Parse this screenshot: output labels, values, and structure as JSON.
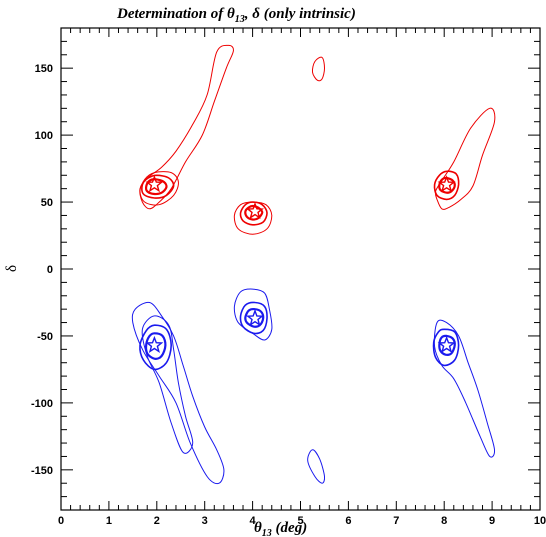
{
  "chart_data": {
    "type": "contour",
    "title_main": "Determination of θ",
    "title_sub": "13",
    "title_rest": ", δ (only intrinsic)",
    "xlabel_main": "θ",
    "xlabel_sub": "13",
    "xlabel_rest": " (deg)",
    "ylabel": "δ",
    "xlim": [
      0,
      10
    ],
    "ylim": [
      -180,
      180
    ],
    "xticks": [
      0,
      1,
      2,
      3,
      4,
      5,
      6,
      7,
      8,
      9,
      10
    ],
    "yticks": [
      -150,
      -100,
      -50,
      0,
      50,
      100,
      150
    ],
    "colors": {
      "red": "#ee0000",
      "blue": "#1a1aee"
    },
    "true_points": [
      {
        "color": "red",
        "x": 1.95,
        "y": 63
      },
      {
        "color": "red",
        "x": 4.05,
        "y": 43
      },
      {
        "color": "red",
        "x": 8.05,
        "y": 63
      },
      {
        "color": "blue",
        "x": 1.95,
        "y": -57
      },
      {
        "color": "blue",
        "x": 4.05,
        "y": -37
      },
      {
        "color": "blue",
        "x": 8.05,
        "y": -57
      }
    ],
    "contours": [
      {
        "color": "red",
        "level": "outer",
        "points": [
          [
            1.65,
            60
          ],
          [
            1.7,
            50
          ],
          [
            1.85,
            45
          ],
          [
            2.05,
            50
          ],
          [
            2.3,
            60
          ],
          [
            2.6,
            80
          ],
          [
            2.95,
            100
          ],
          [
            3.2,
            125
          ],
          [
            3.45,
            150
          ],
          [
            3.6,
            163
          ],
          [
            3.5,
            167
          ],
          [
            3.25,
            162
          ],
          [
            3.05,
            130
          ],
          [
            2.75,
            108
          ],
          [
            2.4,
            88
          ],
          [
            2.1,
            76
          ],
          [
            1.8,
            68
          ]
        ]
      },
      {
        "color": "red",
        "level": "outer",
        "points": [
          [
            1.95,
            72
          ],
          [
            2.3,
            72
          ],
          [
            2.45,
            65
          ],
          [
            2.35,
            55
          ],
          [
            2.05,
            48
          ],
          [
            1.75,
            50
          ],
          [
            1.65,
            58
          ],
          [
            1.75,
            67
          ]
        ]
      },
      {
        "color": "red",
        "level": "mid",
        "points": [
          [
            2.0,
            70
          ],
          [
            2.25,
            68
          ],
          [
            2.35,
            62
          ],
          [
            2.2,
            55
          ],
          [
            1.95,
            53
          ],
          [
            1.72,
            56
          ],
          [
            1.7,
            63
          ],
          [
            1.82,
            68
          ]
        ]
      },
      {
        "color": "red",
        "level": "inner",
        "points": [
          [
            1.98,
            67
          ],
          [
            2.15,
            65
          ],
          [
            2.2,
            61
          ],
          [
            2.1,
            57
          ],
          [
            1.95,
            56
          ],
          [
            1.8,
            58
          ],
          [
            1.78,
            62
          ],
          [
            1.85,
            66
          ]
        ]
      },
      {
        "color": "red",
        "level": "outer",
        "points": [
          [
            4.0,
            50
          ],
          [
            4.28,
            48
          ],
          [
            4.4,
            40
          ],
          [
            4.3,
            30
          ],
          [
            4.0,
            26
          ],
          [
            3.7,
            30
          ],
          [
            3.62,
            40
          ],
          [
            3.75,
            48
          ]
        ]
      },
      {
        "color": "red",
        "level": "mid",
        "points": [
          [
            4.0,
            50
          ],
          [
            4.2,
            48
          ],
          [
            4.3,
            42
          ],
          [
            4.22,
            35
          ],
          [
            4.0,
            33
          ],
          [
            3.8,
            36
          ],
          [
            3.75,
            42
          ],
          [
            3.85,
            48
          ]
        ]
      },
      {
        "color": "red",
        "level": "inner",
        "points": [
          [
            4.02,
            47
          ],
          [
            4.15,
            45
          ],
          [
            4.2,
            42
          ],
          [
            4.12,
            38
          ],
          [
            4.0,
            37
          ],
          [
            3.88,
            39
          ],
          [
            3.85,
            43
          ],
          [
            3.92,
            46
          ]
        ]
      },
      {
        "color": "red",
        "level": "outer",
        "points": [
          [
            5.3,
            155
          ],
          [
            5.45,
            158
          ],
          [
            5.5,
            150
          ],
          [
            5.45,
            142
          ],
          [
            5.35,
            141
          ],
          [
            5.25,
            147
          ]
        ]
      },
      {
        "color": "red",
        "level": "outer",
        "points": [
          [
            7.85,
            52
          ],
          [
            7.95,
            45
          ],
          [
            8.1,
            46
          ],
          [
            8.35,
            52
          ],
          [
            8.6,
            62
          ],
          [
            8.8,
            85
          ],
          [
            9.05,
            110
          ],
          [
            8.95,
            120
          ],
          [
            8.55,
            105
          ],
          [
            8.2,
            80
          ],
          [
            7.95,
            66
          ],
          [
            7.82,
            58
          ]
        ]
      },
      {
        "color": "red",
        "level": "mid",
        "points": [
          [
            8.05,
            73
          ],
          [
            8.25,
            71
          ],
          [
            8.3,
            63
          ],
          [
            8.22,
            55
          ],
          [
            8.05,
            52
          ],
          [
            7.85,
            55
          ],
          [
            7.8,
            63
          ],
          [
            7.9,
            70
          ]
        ]
      },
      {
        "color": "red",
        "level": "inner",
        "points": [
          [
            8.05,
            68
          ],
          [
            8.18,
            66
          ],
          [
            8.22,
            62
          ],
          [
            8.15,
            58
          ],
          [
            8.05,
            57
          ],
          [
            7.92,
            59
          ],
          [
            7.9,
            63
          ],
          [
            7.96,
            67
          ]
        ]
      },
      {
        "color": "blue",
        "level": "outer",
        "points": [
          [
            1.55,
            -30
          ],
          [
            1.85,
            -25
          ],
          [
            2.1,
            -35
          ],
          [
            2.35,
            -50
          ],
          [
            2.55,
            -72
          ],
          [
            2.75,
            -95
          ],
          [
            3.0,
            -118
          ],
          [
            3.25,
            -135
          ],
          [
            3.4,
            -150
          ],
          [
            3.3,
            -160
          ],
          [
            3.05,
            -155
          ],
          [
            2.7,
            -130
          ],
          [
            2.4,
            -100
          ],
          [
            2.05,
            -80
          ],
          [
            1.7,
            -60
          ],
          [
            1.5,
            -40
          ]
        ]
      },
      {
        "color": "blue",
        "level": "outer",
        "points": [
          [
            1.95,
            -35
          ],
          [
            2.25,
            -42
          ],
          [
            2.35,
            -60
          ],
          [
            2.45,
            -85
          ],
          [
            2.6,
            -110
          ],
          [
            2.75,
            -130
          ],
          [
            2.55,
            -137
          ],
          [
            2.3,
            -115
          ],
          [
            2.05,
            -85
          ],
          [
            1.8,
            -65
          ],
          [
            1.7,
            -45
          ]
        ]
      },
      {
        "color": "blue",
        "level": "mid",
        "points": [
          [
            1.95,
            -42
          ],
          [
            2.2,
            -45
          ],
          [
            2.3,
            -57
          ],
          [
            2.2,
            -70
          ],
          [
            1.95,
            -75
          ],
          [
            1.72,
            -68
          ],
          [
            1.65,
            -57
          ],
          [
            1.78,
            -46
          ]
        ]
      },
      {
        "color": "blue",
        "level": "inner",
        "points": [
          [
            1.95,
            -48
          ],
          [
            2.12,
            -50
          ],
          [
            2.18,
            -57
          ],
          [
            2.1,
            -65
          ],
          [
            1.95,
            -67
          ],
          [
            1.8,
            -63
          ],
          [
            1.78,
            -56
          ],
          [
            1.85,
            -50
          ]
        ]
      },
      {
        "color": "blue",
        "level": "outer",
        "points": [
          [
            4.0,
            -15
          ],
          [
            4.25,
            -18
          ],
          [
            4.35,
            -30
          ],
          [
            4.4,
            -45
          ],
          [
            4.25,
            -53
          ],
          [
            4.0,
            -48
          ],
          [
            3.7,
            -40
          ],
          [
            3.62,
            -28
          ],
          [
            3.75,
            -17
          ]
        ]
      },
      {
        "color": "blue",
        "level": "mid",
        "points": [
          [
            4.05,
            -25
          ],
          [
            4.25,
            -28
          ],
          [
            4.3,
            -37
          ],
          [
            4.22,
            -46
          ],
          [
            4.02,
            -48
          ],
          [
            3.8,
            -43
          ],
          [
            3.75,
            -35
          ],
          [
            3.85,
            -27
          ]
        ]
      },
      {
        "color": "blue",
        "level": "inner",
        "points": [
          [
            4.05,
            -30
          ],
          [
            4.18,
            -32
          ],
          [
            4.22,
            -37
          ],
          [
            4.15,
            -42
          ],
          [
            4.02,
            -43
          ],
          [
            3.88,
            -40
          ],
          [
            3.85,
            -36
          ],
          [
            3.92,
            -31
          ]
        ]
      },
      {
        "color": "blue",
        "level": "outer",
        "points": [
          [
            5.25,
            -135
          ],
          [
            5.4,
            -142
          ],
          [
            5.5,
            -155
          ],
          [
            5.45,
            -160
          ],
          [
            5.3,
            -155
          ],
          [
            5.15,
            -143
          ]
        ]
      },
      {
        "color": "blue",
        "level": "outer",
        "points": [
          [
            7.85,
            -40
          ],
          [
            8.05,
            -40
          ],
          [
            8.3,
            -50
          ],
          [
            8.5,
            -70
          ],
          [
            8.7,
            -90
          ],
          [
            8.9,
            -115
          ],
          [
            9.05,
            -135
          ],
          [
            8.95,
            -140
          ],
          [
            8.75,
            -125
          ],
          [
            8.45,
            -100
          ],
          [
            8.2,
            -82
          ],
          [
            7.95,
            -72
          ],
          [
            7.8,
            -58
          ]
        ]
      },
      {
        "color": "blue",
        "level": "mid",
        "points": [
          [
            8.0,
            -45
          ],
          [
            8.22,
            -47
          ],
          [
            8.3,
            -57
          ],
          [
            8.22,
            -68
          ],
          [
            8.0,
            -72
          ],
          [
            7.82,
            -66
          ],
          [
            7.78,
            -55
          ],
          [
            7.88,
            -47
          ]
        ]
      },
      {
        "color": "blue",
        "level": "inner",
        "points": [
          [
            8.05,
            -50
          ],
          [
            8.18,
            -52
          ],
          [
            8.22,
            -57
          ],
          [
            8.15,
            -63
          ],
          [
            8.03,
            -64
          ],
          [
            7.92,
            -61
          ],
          [
            7.9,
            -56
          ],
          [
            7.95,
            -51
          ]
        ]
      }
    ]
  }
}
